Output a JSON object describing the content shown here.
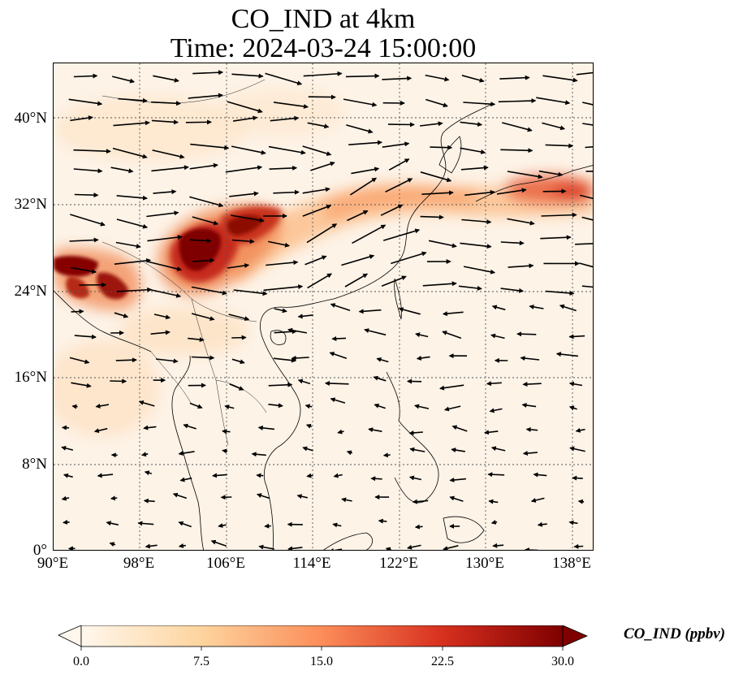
{
  "title": {
    "line1": "CO_IND at 4km",
    "line2": "Time: 2024-03-24 15:00:00"
  },
  "map": {
    "lon_range": [
      90,
      140
    ],
    "lat_range": [
      0,
      45
    ],
    "lat_labels": [
      "0°",
      "8°N",
      "16°N",
      "24°N",
      "32°N",
      "40°N"
    ],
    "lon_labels": [
      "90°E",
      "98°E",
      "106°E",
      "114°E",
      "122°E",
      "130°E",
      "138°E"
    ],
    "gridlines": "dotted",
    "wind_vectors": "westerly flow, strongest north of 24°N"
  },
  "colorbar": {
    "label": "CO_IND (ppbv)",
    "ticks": [
      "0.0",
      "7.5",
      "15.0",
      "22.5",
      "30.0"
    ],
    "range": [
      0,
      30
    ],
    "colormap": "OrRd",
    "extend": "both",
    "colors": [
      "#fff7ec",
      "#fdd49e",
      "#fc8d59",
      "#d7301f",
      "#7f0000"
    ]
  },
  "plumes": [
    {
      "region": "Sichuan Basin / SW China",
      "level": "above 30 ppbv"
    },
    {
      "region": "Myanmar / NE India",
      "level": "above 30 ppbv"
    },
    {
      "region": "East China to Japan band",
      "level": "10-18 ppbv"
    }
  ]
}
